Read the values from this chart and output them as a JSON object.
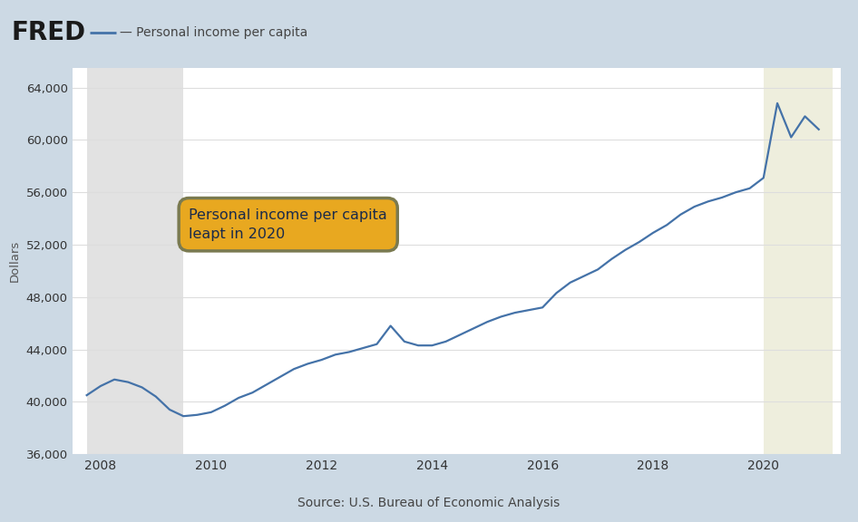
{
  "title": "Personal income per capita",
  "ylabel": "Dollars",
  "source": "Source: U.S. Bureau of Economic Analysis",
  "line_color": "#4472a8",
  "line_width": 1.6,
  "background_outer": "#ccd9e4",
  "background_chart": "#ffffff",
  "background_recession1": "#e2e2e2",
  "background_recession2": "#eeeedd",
  "annotation_text": "Personal income per capita\nleapt in 2020",
  "annotation_bg": "#e8a820",
  "annotation_text_color": "#1a2a4a",
  "annotation_edge_color": "#7a7a50",
  "ylim": [
    36000,
    65500
  ],
  "yticks": [
    36000,
    40000,
    44000,
    48000,
    52000,
    56000,
    60000,
    64000
  ],
  "recession1_start": 2007.75,
  "recession1_end": 2009.5,
  "recession2_start": 2020.0,
  "recession2_end": 2021.25,
  "fred_color": "#1a1a1a",
  "xlim_left": 2007.5,
  "xlim_right": 2021.4,
  "years": [
    2007.75,
    2008.0,
    2008.25,
    2008.5,
    2008.75,
    2009.0,
    2009.25,
    2009.5,
    2009.75,
    2010.0,
    2010.25,
    2010.5,
    2010.75,
    2011.0,
    2011.25,
    2011.5,
    2011.75,
    2012.0,
    2012.25,
    2012.5,
    2012.75,
    2013.0,
    2013.25,
    2013.5,
    2013.75,
    2014.0,
    2014.25,
    2014.5,
    2014.75,
    2015.0,
    2015.25,
    2015.5,
    2015.75,
    2016.0,
    2016.25,
    2016.5,
    2016.75,
    2017.0,
    2017.25,
    2017.5,
    2017.75,
    2018.0,
    2018.25,
    2018.5,
    2018.75,
    2019.0,
    2019.25,
    2019.5,
    2019.75,
    2020.0,
    2020.25,
    2020.5,
    2020.75,
    2021.0
  ],
  "values": [
    40500,
    41200,
    41700,
    41500,
    41100,
    40400,
    39400,
    38900,
    39000,
    39200,
    39700,
    40300,
    40700,
    41300,
    41900,
    42500,
    42900,
    43200,
    43600,
    43800,
    44100,
    44400,
    45800,
    44600,
    44300,
    44300,
    44600,
    45100,
    45600,
    46100,
    46500,
    46800,
    47000,
    47200,
    48300,
    49100,
    49600,
    50100,
    50900,
    51600,
    52200,
    52900,
    53500,
    54300,
    54900,
    55300,
    55600,
    56000,
    56300,
    57100,
    62800,
    60200,
    61800,
    60800
  ],
  "xtick_positions": [
    2008,
    2010,
    2012,
    2014,
    2016,
    2018,
    2020
  ],
  "xtick_labels": [
    "2008",
    "2010",
    "2012",
    "2014",
    "2016",
    "2018",
    "2020"
  ]
}
